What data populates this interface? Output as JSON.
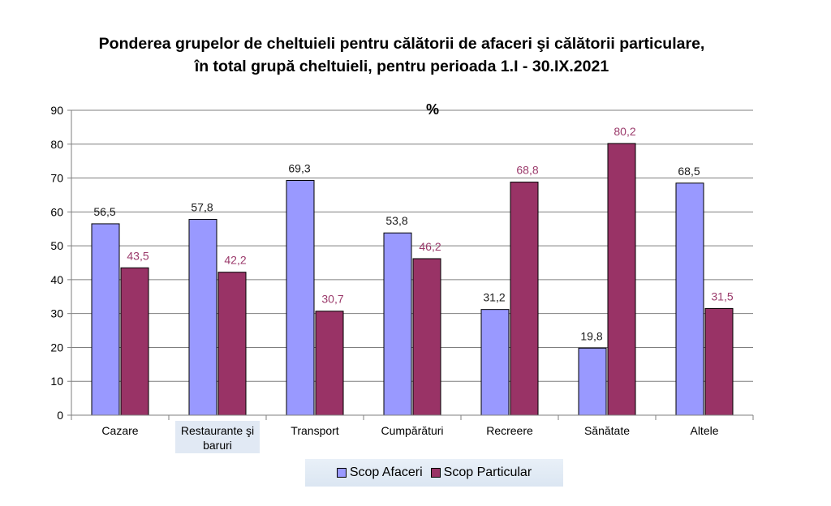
{
  "chart_data": {
    "type": "bar",
    "title_line1": "Ponderea grupelor de cheltuieli pentru călătorii de afaceri şi călătorii particulare,",
    "title_line2": "în total grupă cheltuieli, pentru perioada 1.I - 30.IX.2021",
    "unit": "%",
    "categories": [
      "Cazare",
      "Restaurante şi baruri",
      "Transport",
      "Cumpărături",
      "Recreere",
      "Sănătate",
      "Altele"
    ],
    "category_lines": [
      [
        "Cazare"
      ],
      [
        "Restaurante şi",
        "baruri"
      ],
      [
        "Transport"
      ],
      [
        "Cumpărături"
      ],
      [
        "Recreere"
      ],
      [
        "Sănătate"
      ],
      [
        "Altele"
      ]
    ],
    "series": [
      {
        "name": "Scop Afaceri",
        "values": [
          56.5,
          57.8,
          69.3,
          53.8,
          31.2,
          19.8,
          68.5
        ],
        "labels": [
          "56,5",
          "57,8",
          "69,3",
          "53,8",
          "31,2",
          "19,8",
          "68,5"
        ],
        "color": "#9999ff"
      },
      {
        "name": "Scop Particular",
        "values": [
          43.5,
          42.2,
          30.7,
          46.2,
          68.8,
          80.2,
          31.5
        ],
        "labels": [
          "43,5",
          "42,2",
          "30,7",
          "46,2",
          "68,8",
          "80,2",
          "31,5"
        ],
        "color": "#993366"
      }
    ],
    "yticks": [
      "0",
      "10",
      "20",
      "30",
      "40",
      "50",
      "60",
      "70",
      "80",
      "90"
    ],
    "ylim": [
      0,
      90
    ],
    "grid": true,
    "legend_position": "bottom"
  }
}
